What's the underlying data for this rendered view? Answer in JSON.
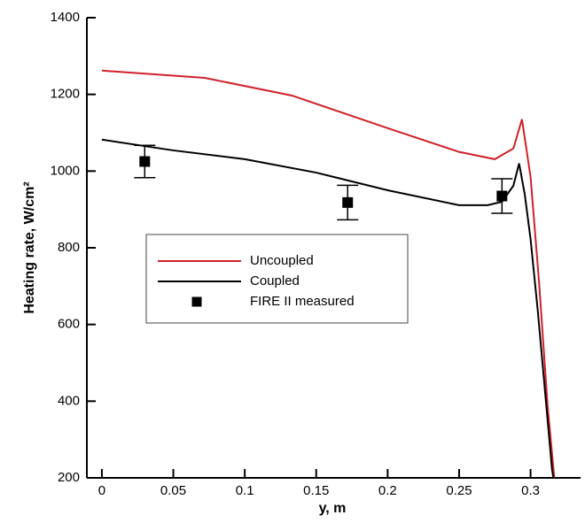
{
  "chart_data": {
    "type": "line",
    "x_label": "y, m",
    "y_label": "Heating rate, W/cm²",
    "xlim": [
      -0.0105,
      0.335
    ],
    "xticks": [
      0,
      0.05,
      0.1,
      0.15,
      0.2,
      0.25,
      0.3
    ],
    "ylim": [
      200,
      1400
    ],
    "yticks": [
      200,
      400,
      600,
      800,
      1000,
      1200,
      1400
    ],
    "series": [
      {
        "name": "Uncoupled",
        "color": "#d0202a",
        "style": "line",
        "x": [
          0,
          0.072,
          0.133,
          0.2,
          0.25,
          0.275,
          0.288,
          0.294,
          0.3,
          0.306,
          0.312,
          0.3166
        ],
        "values": [
          1262,
          1243,
          1197,
          1112,
          1050,
          1031,
          1059,
          1135,
          985,
          708,
          385,
          200
        ]
      },
      {
        "name": "Coupled",
        "color": "#000000",
        "style": "line",
        "x": [
          0,
          0.05,
          0.1,
          0.15,
          0.2,
          0.25,
          0.27,
          0.28,
          0.288,
          0.292,
          0.296,
          0.3,
          0.305,
          0.31,
          0.315,
          0.316
        ],
        "values": [
          1082,
          1054,
          1031,
          996,
          950,
          911,
          911,
          920,
          962,
          1020,
          938,
          823,
          638,
          431,
          223,
          200
        ]
      },
      {
        "name": "FIRE II measured",
        "color": "#000000",
        "style": "marker",
        "x": [
          0.03,
          0.172,
          0.28
        ],
        "values": [
          1025,
          918,
          935
        ],
        "errors": [
          42,
          45,
          45
        ]
      }
    ]
  }
}
